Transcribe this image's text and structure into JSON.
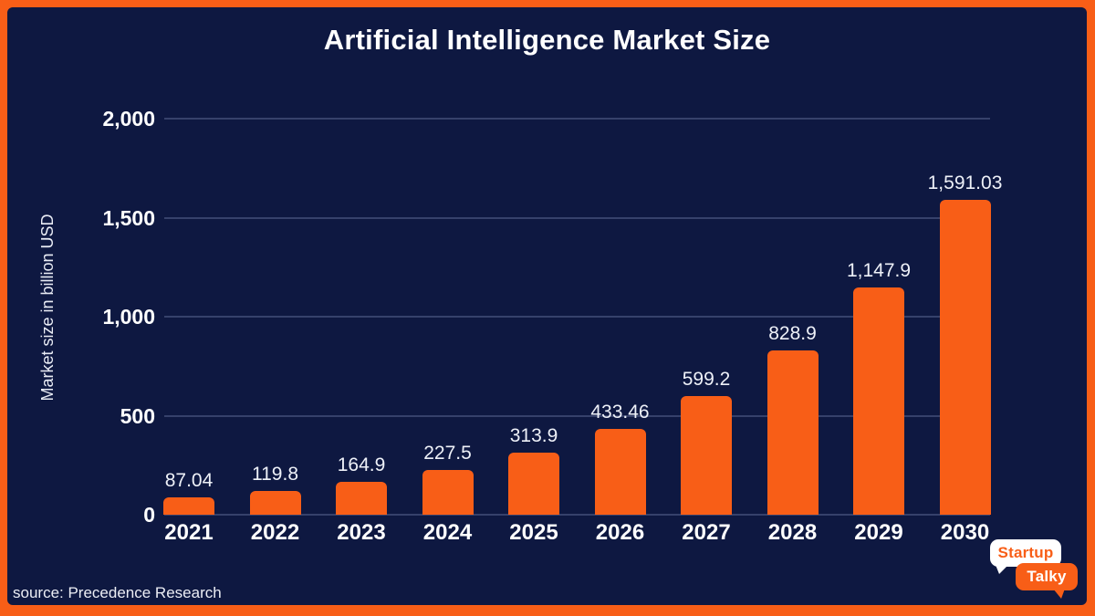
{
  "page": {
    "background_color": "#0e1841",
    "frame_color": "#f85e17"
  },
  "source": "source: Precedence Research",
  "logo": {
    "line1": "Startup",
    "line2": "Talky"
  },
  "chart_data": {
    "type": "bar",
    "title": "Artificial Intelligence Market Size",
    "xlabel": "",
    "ylabel": "Market size in billion USD",
    "categories": [
      "2021",
      "2022",
      "2023",
      "2024",
      "2025",
      "2026",
      "2027",
      "2028",
      "2029",
      "2030"
    ],
    "values": [
      87.04,
      119.8,
      164.9,
      227.5,
      313.9,
      433.46,
      599.2,
      828.9,
      1147.9,
      1591.03
    ],
    "value_labels": [
      "87.04",
      "119.8",
      "164.9",
      "227.5",
      "313.9",
      "433.46",
      "599.2",
      "828.9",
      "1,147.9",
      "1,591.03"
    ],
    "y_ticks": [
      {
        "label": "2,000",
        "value": 2000
      },
      {
        "label": "1,500",
        "value": 1500
      },
      {
        "label": "1,000",
        "value": 1000
      },
      {
        "label": "500",
        "value": 500
      },
      {
        "label": "0",
        "value": 0
      }
    ],
    "ylim": [
      0,
      2000
    ],
    "bar_color": "#f85e17",
    "grid": true,
    "legend": null
  }
}
